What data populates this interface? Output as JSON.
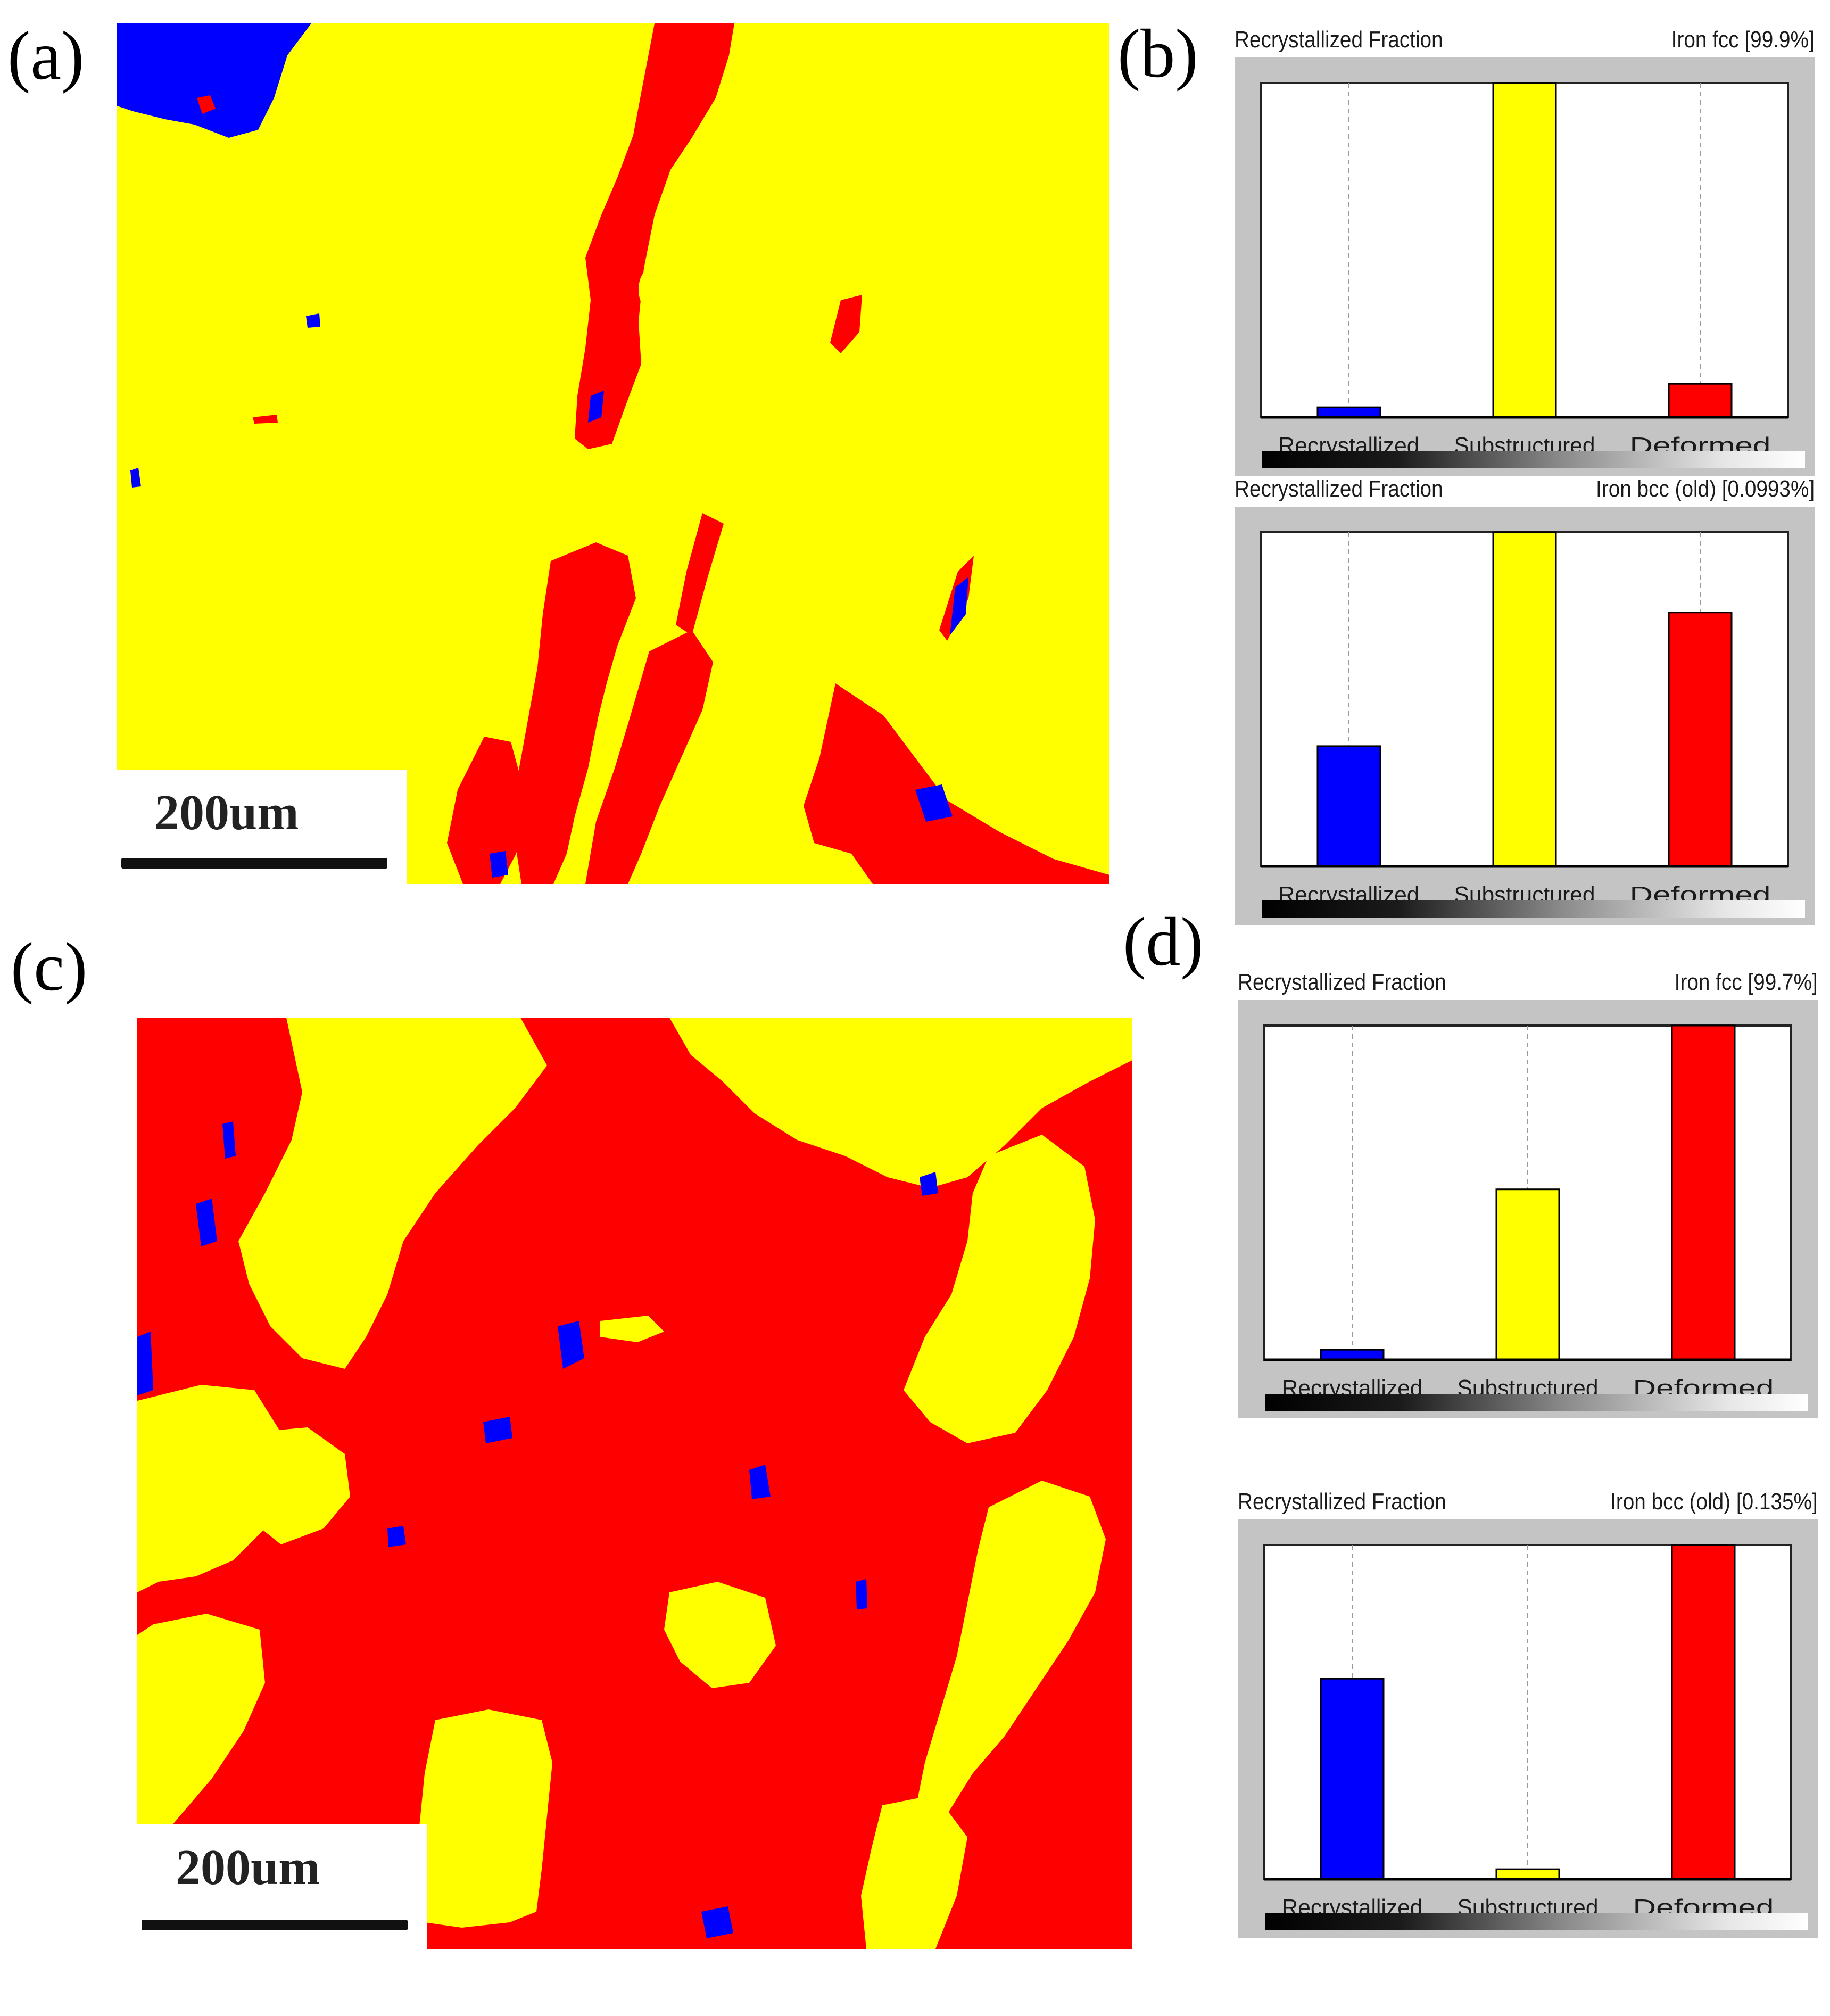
{
  "panels": {
    "a": {
      "letter": "(a)",
      "scale_label": "200um"
    },
    "b": {
      "letter": "(b)"
    },
    "c": {
      "letter": "(c)",
      "scale_label": "200um"
    },
    "d": {
      "letter": "(d)"
    }
  },
  "map_legend": {
    "recrystallized": "#0000ff",
    "substructured": "#ffff00",
    "deformed": "#ff0000"
  },
  "chart_data": [
    {
      "type": "bar",
      "panel": "b",
      "chart": "upper",
      "title": "Recrystallized Fraction",
      "phase": "Iron fcc [99.9%]",
      "categories": [
        "Recrystallized",
        "Substructured",
        "Deformed"
      ],
      "values": [
        3,
        100,
        10
      ],
      "colors": [
        "#0000ff",
        "#ffff00",
        "#ff0000"
      ],
      "ylim": [
        0,
        100
      ]
    },
    {
      "type": "bar",
      "panel": "b",
      "chart": "lower",
      "title": "Recrystallized Fraction",
      "phase": "Iron bcc (old) [0.0993%]",
      "categories": [
        "Recrystallized",
        "Substructured",
        "Deformed"
      ],
      "values": [
        36,
        100,
        76
      ],
      "colors": [
        "#0000ff",
        "#ffff00",
        "#ff0000"
      ],
      "ylim": [
        0,
        100
      ]
    },
    {
      "type": "bar",
      "panel": "d",
      "chart": "upper",
      "title": "Recrystallized Fraction",
      "phase": "Iron fcc [99.7%]",
      "categories": [
        "Recrystallized",
        "Substructured",
        "Deformed"
      ],
      "values": [
        3,
        51,
        100
      ],
      "colors": [
        "#0000ff",
        "#ffff00",
        "#ff0000"
      ],
      "ylim": [
        0,
        100
      ]
    },
    {
      "type": "bar",
      "panel": "d",
      "chart": "lower",
      "title": "Recrystallized Fraction",
      "phase": "Iron bcc (old) [0.135%]",
      "categories": [
        "Recrystallized",
        "Substructured",
        "Deformed"
      ],
      "values": [
        60,
        3,
        100
      ],
      "colors": [
        "#0000ff",
        "#ffff00",
        "#ff0000"
      ],
      "ylim": [
        0,
        100
      ]
    }
  ]
}
